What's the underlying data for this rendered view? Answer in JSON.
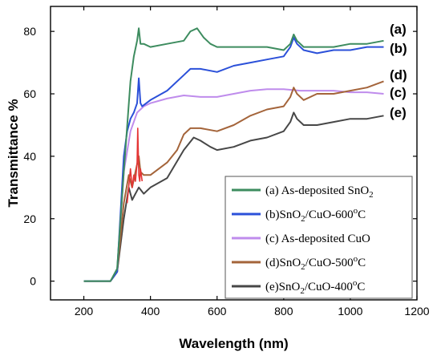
{
  "chart_data": {
    "type": "line",
    "xlabel": "Wavelength (nm)",
    "ylabel": "Transmittance %",
    "xlim": [
      100,
      1200
    ],
    "ylim": [
      -6,
      88
    ],
    "xticks": [
      200,
      400,
      600,
      800,
      1000,
      1200
    ],
    "yticks": [
      0,
      20,
      40,
      60,
      80
    ],
    "grid": false,
    "legend_position": "bottom-right",
    "series": [
      {
        "name": "(a) As-deposited SnO",
        "name_sub": "2",
        "tag": "(a)",
        "color": "#3d8c5f",
        "x": [
          200,
          280,
          300,
          320,
          340,
          350,
          360,
          365,
          370,
          380,
          400,
          450,
          500,
          520,
          540,
          560,
          580,
          600,
          650,
          700,
          750,
          800,
          820,
          830,
          840,
          860,
          900,
          950,
          1000,
          1050,
          1100
        ],
        "y": [
          0,
          0,
          4,
          35,
          64,
          72,
          77,
          81,
          76,
          76,
          75,
          76,
          77,
          80,
          81,
          78,
          76,
          75,
          75,
          75,
          75,
          74,
          76,
          79,
          77,
          75,
          75,
          75,
          76,
          76,
          77
        ]
      },
      {
        "name": "(b)SnO",
        "name_sub": "2",
        "name_suffix": "/CuO-600",
        "name_sup": "o",
        "name_end": "C",
        "tag": "(b)",
        "color": "#2b50d9",
        "x": [
          200,
          280,
          300,
          320,
          330,
          340,
          350,
          360,
          365,
          370,
          375,
          400,
          450,
          500,
          520,
          550,
          600,
          650,
          700,
          750,
          800,
          820,
          830,
          840,
          860,
          900,
          950,
          1000,
          1050,
          1100
        ],
        "y": [
          0,
          0,
          3,
          40,
          48,
          52,
          54,
          57,
          65,
          57,
          56,
          58,
          61,
          66,
          68,
          68,
          67,
          69,
          70,
          71,
          72,
          75,
          78,
          76,
          74,
          73,
          74,
          74,
          75,
          75
        ]
      },
      {
        "name": "(c) As-deposited CuO",
        "tag": "(c)",
        "color": "#bf8cec",
        "x": [
          200,
          280,
          300,
          320,
          340,
          360,
          380,
          400,
          450,
          500,
          550,
          600,
          650,
          700,
          750,
          800,
          850,
          900,
          950,
          1000,
          1050,
          1100
        ],
        "y": [
          0,
          0,
          3,
          35,
          48,
          54,
          56,
          57,
          58.5,
          59.5,
          59,
          59,
          60,
          61,
          61.5,
          61.5,
          61,
          61,
          61,
          60.5,
          60.5,
          60
        ]
      },
      {
        "name": "(d)SnO",
        "name_sub": "2",
        "name_suffix": "/CuO-500",
        "name_sup": "o",
        "name_end": "C",
        "tag": "(d)",
        "color": "#a4643a",
        "x": [
          200,
          280,
          300,
          320,
          335,
          345,
          355,
          365,
          370,
          380,
          400,
          450,
          480,
          500,
          520,
          550,
          600,
          650,
          700,
          750,
          800,
          820,
          830,
          840,
          860,
          900,
          950,
          1000,
          1050,
          1100
        ],
        "y": [
          0,
          0,
          3,
          25,
          34,
          30,
          35,
          40,
          35,
          34,
          34,
          38,
          42,
          47,
          49,
          49,
          48,
          50,
          53,
          55,
          56,
          59,
          62,
          60,
          58,
          60,
          60,
          61,
          62,
          64
        ]
      },
      {
        "name": "(e)SnO",
        "name_sub": "2",
        "name_suffix": "/CuO-400",
        "name_sup": "o",
        "name_end": "C",
        "tag": "(e)",
        "color": "#474747",
        "x": [
          200,
          280,
          300,
          320,
          335,
          345,
          355,
          365,
          380,
          400,
          450,
          500,
          530,
          550,
          580,
          600,
          650,
          700,
          750,
          800,
          820,
          830,
          840,
          860,
          900,
          950,
          1000,
          1050,
          1100
        ],
        "y": [
          0,
          0,
          3,
          20,
          30,
          26,
          28,
          30,
          28,
          30,
          33,
          42,
          46,
          45,
          43,
          42,
          43,
          45,
          46,
          48,
          51,
          54,
          52,
          50,
          50,
          51,
          52,
          52,
          53
        ]
      }
    ],
    "annotation": {
      "name": "red spike series",
      "color": "#e53535",
      "x": [
        330,
        340,
        345,
        350,
        355,
        360,
        362,
        365,
        368,
        370,
        375
      ],
      "y": [
        25,
        36,
        30,
        34,
        32,
        38,
        49,
        34,
        32,
        36,
        32
      ]
    }
  }
}
